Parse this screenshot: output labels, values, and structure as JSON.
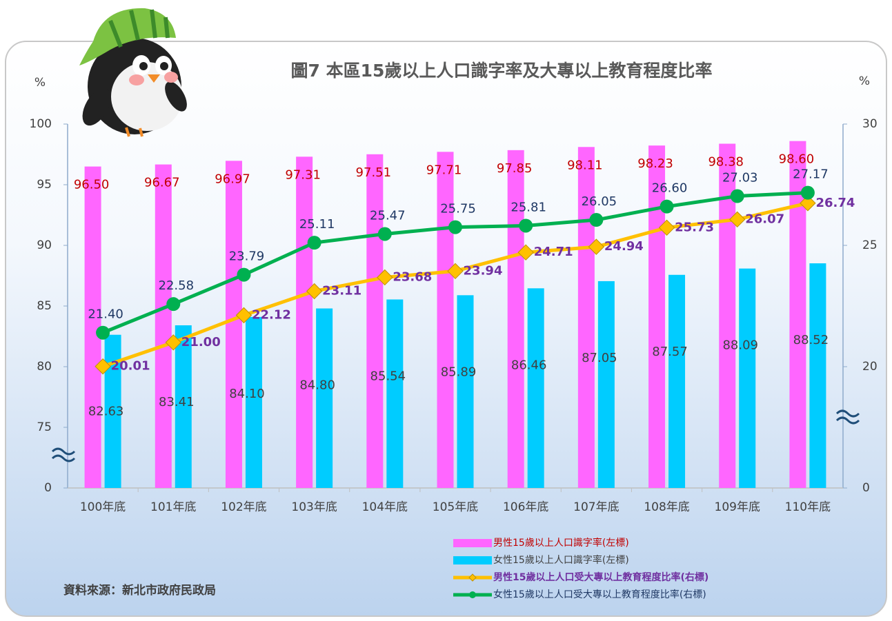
{
  "chart_data": {
    "type": "combo",
    "title": "圖7 本區15歲以上人口識字率及大專以上教育程度比率",
    "y_label": "%",
    "y2_label": "%",
    "source": "資料來源：新北市政府民政局",
    "categories": [
      "100年底",
      "101年底",
      "102年底",
      "103年底",
      "104年底",
      "105年底",
      "106年底",
      "107年底",
      "108年底",
      "109年底",
      "110年底"
    ],
    "ylim": [
      0,
      100
    ],
    "yticks": [
      0,
      75,
      80,
      85,
      90,
      95,
      100
    ],
    "y2lim": [
      0,
      30
    ],
    "y2ticks": [
      0,
      20,
      25,
      30
    ],
    "series": [
      {
        "name": "男性15歲以上人口識字率(左標)",
        "type": "bar",
        "color": "#ff66ff",
        "values": [
          96.5,
          96.67,
          96.97,
          97.31,
          97.51,
          97.71,
          97.85,
          98.11,
          98.23,
          98.38,
          98.6
        ],
        "value_labels": [
          "96.50",
          "96.67",
          "96.97",
          "97.31",
          "97.51",
          "97.71",
          "97.85",
          "98.11",
          "98.23",
          "98.38",
          "98.60"
        ]
      },
      {
        "name": "女性15歲以上人口識字率(左標)",
        "type": "bar",
        "color": "#00ccff",
        "values": [
          82.63,
          83.41,
          84.1,
          84.8,
          85.54,
          85.89,
          86.46,
          87.05,
          87.57,
          88.09,
          88.52
        ],
        "value_labels": [
          "82.63",
          "83.41",
          "84.10",
          "84.80",
          "85.54",
          "85.89",
          "86.46",
          "87.05",
          "87.57",
          "88.09",
          "88.52"
        ]
      },
      {
        "name": "男性15歲以上人口受大專以上教育程度比率(右標)",
        "type": "line",
        "axis": "y2",
        "color": "#ffc000",
        "values": [
          20.01,
          21.0,
          22.12,
          23.11,
          23.68,
          23.94,
          24.71,
          24.94,
          25.73,
          26.07,
          26.74
        ],
        "value_labels": [
          "20.01",
          "21.00",
          "22.12",
          "23.11",
          "23.68",
          "23.94",
          "24.71",
          "24.94",
          "25.73",
          "26.07",
          "26.74"
        ]
      },
      {
        "name": "女性15歲以上人口受大專以上教育程度比率(右標)",
        "type": "line",
        "axis": "y2",
        "color": "#00b050",
        "values": [
          21.4,
          22.58,
          23.79,
          25.11,
          25.47,
          25.75,
          25.81,
          26.05,
          26.6,
          27.03,
          27.17
        ],
        "value_labels": [
          "21.40",
          "22.58",
          "23.79",
          "25.11",
          "25.47",
          "25.75",
          "25.81",
          "26.05",
          "26.60",
          "27.03",
          "27.17"
        ]
      }
    ]
  }
}
